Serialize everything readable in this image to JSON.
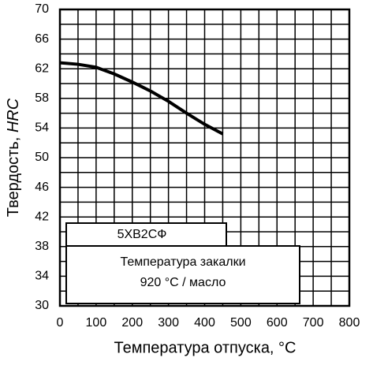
{
  "chart_data": {
    "type": "line",
    "xlabel": "Температура отпуска, °C",
    "ylabel": "Твердость,",
    "ylabel_unit": "HRC",
    "x": [
      0,
      50,
      100,
      150,
      200,
      250,
      300,
      350,
      400,
      450
    ],
    "series": [
      {
        "name": "5ХВ2СФ",
        "color": "#000000",
        "values": [
          62.8,
          62.6,
          62.2,
          61.3,
          60.2,
          59.0,
          57.6,
          56.0,
          54.5,
          53.2
        ]
      }
    ],
    "annotation": [
      "Температура закалки",
      "920 °C / масло"
    ],
    "xlim": [
      0,
      800
    ],
    "xticks": [
      0,
      100,
      200,
      300,
      400,
      500,
      600,
      700,
      800
    ],
    "xminorticks": [
      50,
      150,
      250,
      350,
      450,
      550,
      650,
      750
    ],
    "ylim": [
      30,
      70
    ],
    "yticks": [
      30,
      34,
      38,
      42,
      46,
      50,
      54,
      58,
      62,
      66,
      70
    ],
    "yminorticks": [
      32,
      36,
      40,
      44,
      48,
      52,
      56,
      60,
      64,
      68
    ],
    "grid": true
  }
}
